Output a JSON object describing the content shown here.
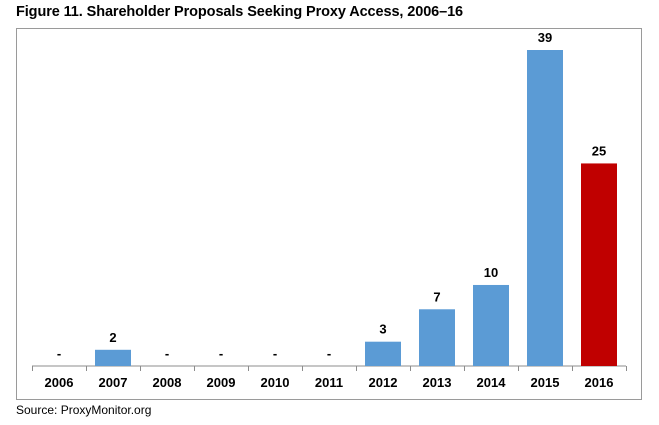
{
  "chart_data": {
    "type": "bar",
    "title": "Figure 11. Shareholder Proposals Seeking Proxy Access, 2006–16",
    "xlabel": "",
    "ylabel": "",
    "categories": [
      "2006",
      "2007",
      "2008",
      "2009",
      "2010",
      "2011",
      "2012",
      "2013",
      "2014",
      "2015",
      "2016"
    ],
    "values": [
      0,
      2,
      0,
      0,
      0,
      0,
      3,
      7,
      10,
      39,
      25
    ],
    "data_labels": [
      "-",
      "2",
      "-",
      "-",
      "-",
      "-",
      "3",
      "7",
      "10",
      "39",
      "25"
    ],
    "bar_colors": [
      "#5b9bd5",
      "#5b9bd5",
      "#5b9bd5",
      "#5b9bd5",
      "#5b9bd5",
      "#5b9bd5",
      "#5b9bd5",
      "#5b9bd5",
      "#5b9bd5",
      "#5b9bd5",
      "#c00000"
    ],
    "ylim": [
      0,
      39
    ],
    "grid": false,
    "legend": "none",
    "source": "Source: ProxyMonitor.org"
  }
}
